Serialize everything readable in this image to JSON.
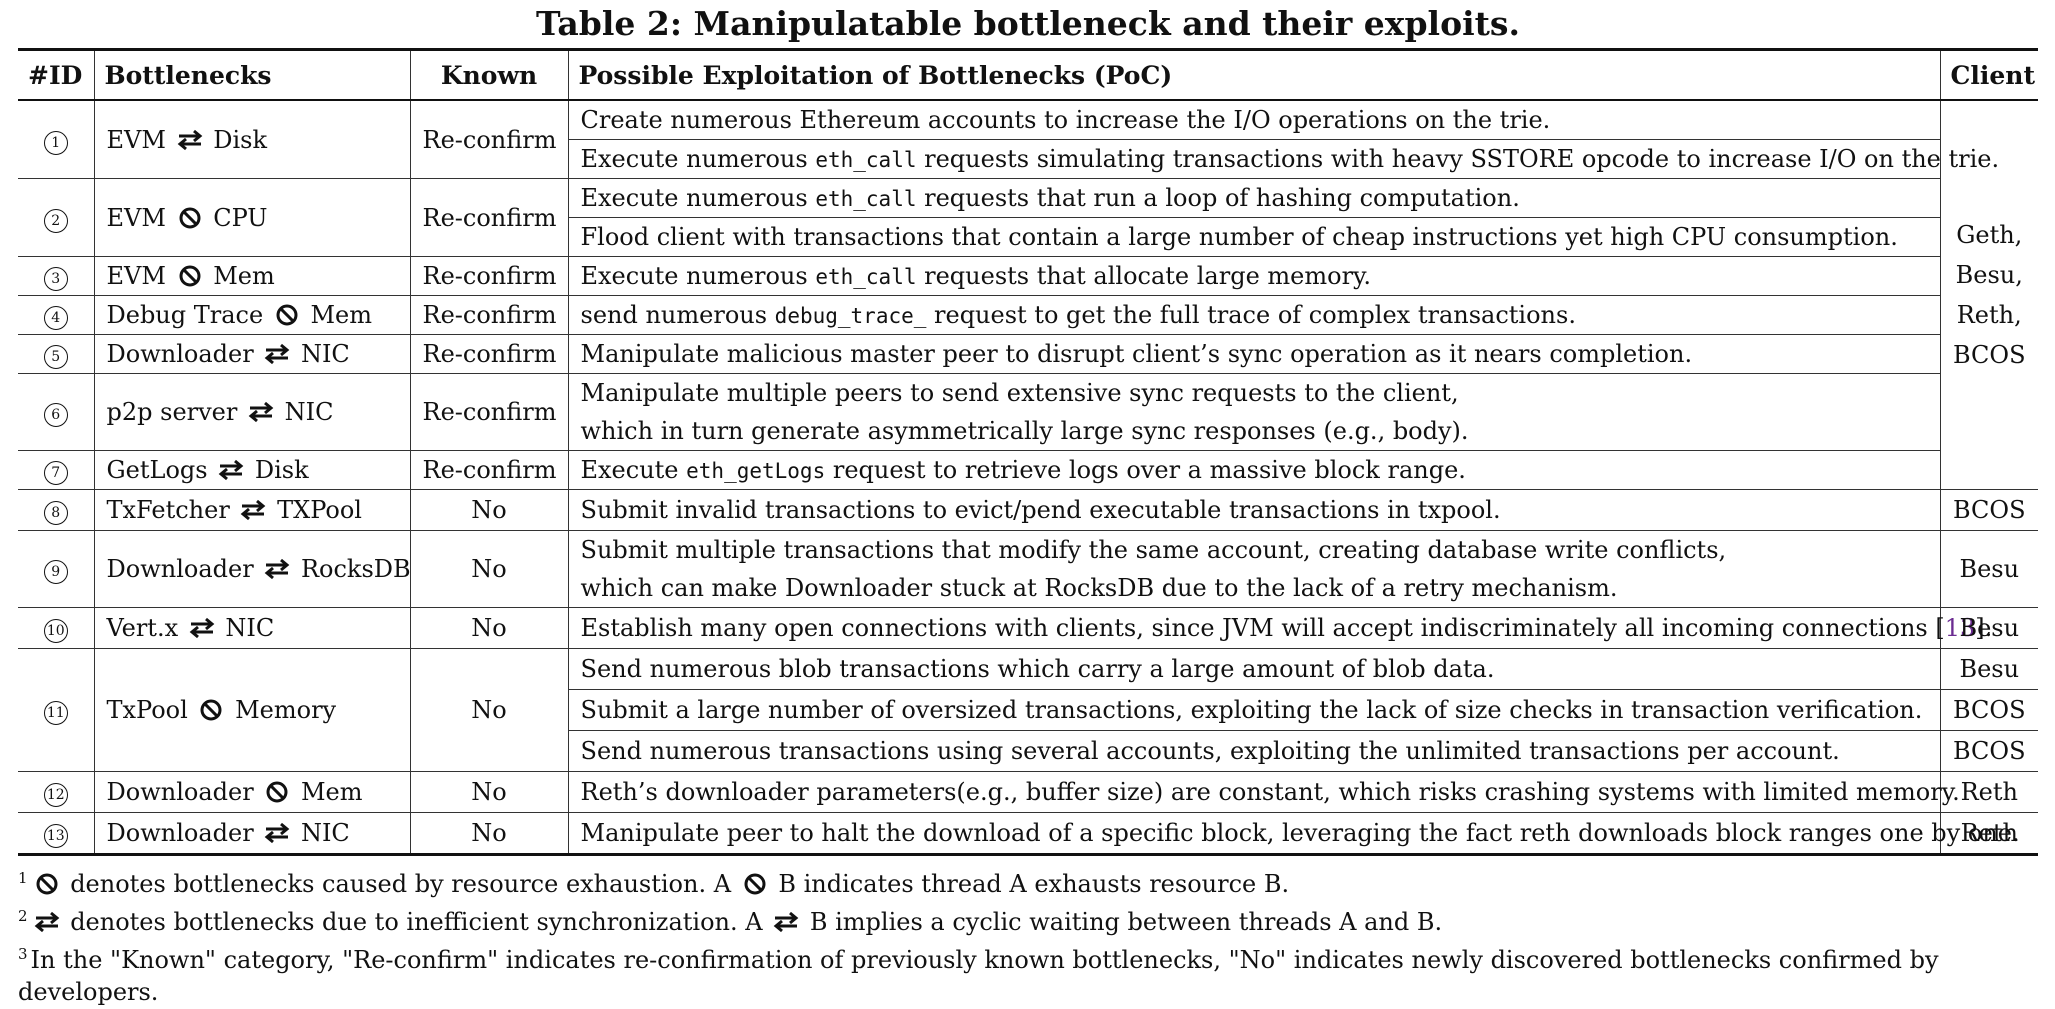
{
  "caption": "Table 2: Manipulatable bottleneck and their exploits.",
  "headers": {
    "id": "#ID",
    "bottlenecks": "Bottlenecks",
    "known": "Known",
    "poc": "Possible Exploitation of Bottlenecks (PoC)",
    "client": "Client"
  },
  "group_client": [
    "Geth,",
    "Besu,",
    "Reth,",
    "BCOS"
  ],
  "rows": [
    {
      "id": "1",
      "a": "EVM",
      "sym": "swap",
      "b": "Disk",
      "known": "Re-confirm",
      "poc": [
        {
          "pre": "Create numerous Ethereum accounts to increase the I/O operations on the trie.",
          "code": "",
          "post": ""
        },
        {
          "pre": "Execute numerous ",
          "code": "eth_call",
          "post": " requests simulating transactions with heavy SSTORE opcode to increase I/O on the trie."
        }
      ]
    },
    {
      "id": "2",
      "a": "EVM",
      "sym": "ban",
      "b": "CPU",
      "known": "Re-confirm",
      "poc": [
        {
          "pre": "Execute numerous ",
          "code": "eth_call",
          "post": " requests that run a loop of hashing computation."
        },
        {
          "pre": "Flood client with transactions that contain a large number of cheap instructions yet high CPU consumption.",
          "code": "",
          "post": ""
        }
      ]
    },
    {
      "id": "3",
      "a": "EVM",
      "sym": "ban",
      "b": "Mem",
      "known": "Re-confirm",
      "poc": [
        {
          "pre": "Execute numerous ",
          "code": "eth_call",
          "post": " requests that allocate large memory."
        }
      ]
    },
    {
      "id": "4",
      "a": "Debug Trace",
      "sym": "ban",
      "b": "Mem",
      "known": "Re-confirm",
      "poc": [
        {
          "pre": "send numerous ",
          "code": "debug_trace_",
          "post": " request to get the full trace of complex transactions."
        }
      ]
    },
    {
      "id": "5",
      "a": "Downloader",
      "sym": "swap",
      "b": "NIC",
      "known": "Re-confirm",
      "poc": [
        {
          "pre": "Manipulate malicious master peer to disrupt client’s sync operation as it nears completion.",
          "code": "",
          "post": ""
        }
      ]
    },
    {
      "id": "6",
      "a": "p2p server",
      "sym": "swap",
      "b": "NIC",
      "known": "Re-confirm",
      "poc": [
        {
          "pre": "Manipulate multiple peers to send extensive sync requests to the client,",
          "code": "",
          "post": ""
        },
        {
          "pre": "which in turn generate asymmetrically large sync responses (e.g., body).",
          "code": "",
          "post": ""
        }
      ]
    },
    {
      "id": "7",
      "a": "GetLogs",
      "sym": "swap",
      "b": "Disk",
      "known": "Re-confirm",
      "poc": [
        {
          "pre": "Execute ",
          "code": "eth_getLogs",
          "post": " request to retrieve logs over a massive block range."
        }
      ]
    },
    {
      "id": "8",
      "a": "TxFetcher",
      "sym": "swap",
      "b": "TXPool",
      "known": "No",
      "poc": [
        {
          "pre": "Submit invalid transactions to evict/pend executable transactions in txpool.",
          "code": "",
          "post": ""
        }
      ],
      "client": "BCOS"
    },
    {
      "id": "9",
      "a": "Downloader",
      "sym": "swap",
      "b": "RocksDB",
      "known": "No",
      "poc": [
        {
          "pre": "Submit multiple transactions that modify the same account, creating database write conflicts,",
          "code": "",
          "post": ""
        },
        {
          "pre": "which can make Downloader stuck at RocksDB due to the lack of a retry mechanism.",
          "code": "",
          "post": ""
        }
      ],
      "client": "Besu"
    },
    {
      "id": "10",
      "a": "Vert.x",
      "sym": "swap",
      "b": "NIC",
      "known": "No",
      "poc": [
        {
          "pre": "Establish many open connections with clients, since JVM will accept indiscriminately all incoming connections [",
          "code": "",
          "post": "].",
          "cite": "13"
        }
      ],
      "client": "Besu"
    },
    {
      "id": "11",
      "a": "TxPool",
      "sym": "ban",
      "b": "Memory",
      "known": "No",
      "poc": [
        {
          "pre": "Send numerous blob transactions which carry a large amount of blob data.",
          "code": "",
          "post": "",
          "client": "Besu"
        },
        {
          "pre": "Submit a large number of oversized transactions, exploiting the lack of size checks in transaction verification.",
          "code": "",
          "post": "",
          "client": "BCOS"
        },
        {
          "pre": "Send numerous transactions using several accounts, exploiting the unlimited transactions per account.",
          "code": "",
          "post": "",
          "client": "BCOS"
        }
      ]
    },
    {
      "id": "12",
      "a": "Downloader",
      "sym": "ban",
      "b": "Mem",
      "known": "No",
      "poc": [
        {
          "pre": "Reth’s downloader parameters(e.g., buffer size) are constant, which risks crashing systems with limited memory.",
          "code": "",
          "post": ""
        }
      ],
      "client": "Reth"
    },
    {
      "id": "13",
      "a": "Downloader",
      "sym": "swap",
      "b": "NIC",
      "known": "No",
      "poc": [
        {
          "pre": "Manipulate peer to halt the download of a specific block, leveraging the fact reth downloads block ranges one by one.",
          "code": "",
          "post": ""
        }
      ],
      "client": "Reth"
    }
  ],
  "notes": [
    {
      "num": "1",
      "sym": "ban",
      "parts": [
        "denotes bottlenecks caused by resource exhaustion. A",
        "B indicates thread A exhausts resource B."
      ]
    },
    {
      "num": "2",
      "sym": "swap",
      "parts": [
        "denotes bottlenecks due to inefficient synchronization. A",
        "B implies a cyclic waiting between threads A and B."
      ]
    },
    {
      "num": "3",
      "sym": "",
      "parts": [
        "In the \"Known\" category, \"Re-confirm\" indicates re-confirmation of previously known bottlenecks, \"No\" indicates newly discovered bottlenecks confirmed by developers."
      ]
    }
  ]
}
